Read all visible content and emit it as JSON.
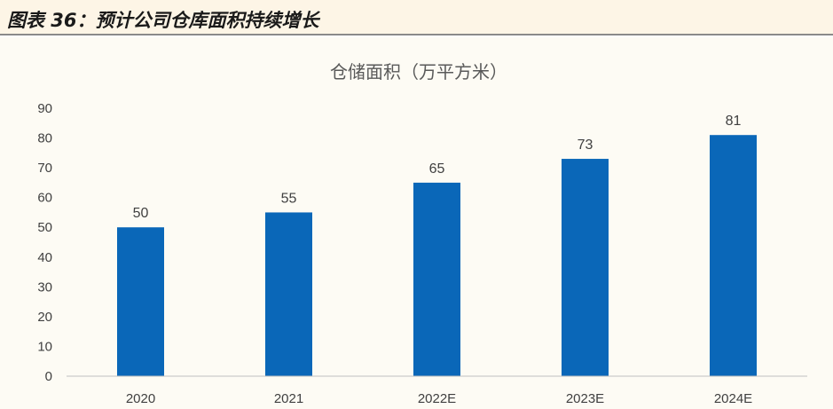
{
  "header": {
    "figure_title": "图表 36：预计公司仓库面积持续增长"
  },
  "colors": {
    "bar": "#0a67b8",
    "header_bg": "#fdf5e6",
    "plot_bg": "#fdfbf4"
  },
  "chart_data": {
    "type": "bar",
    "title": "仓储面积（万平方米）",
    "categories": [
      "2020",
      "2021",
      "2022E",
      "2023E",
      "2024E"
    ],
    "values": [
      50,
      55,
      65,
      73,
      81
    ],
    "ylim": [
      0,
      90
    ],
    "yticks": [
      0,
      10,
      20,
      30,
      40,
      50,
      60,
      70,
      80,
      90
    ],
    "xlabel": "",
    "ylabel": "",
    "grid": false,
    "legend": "none",
    "data_labels": true
  }
}
